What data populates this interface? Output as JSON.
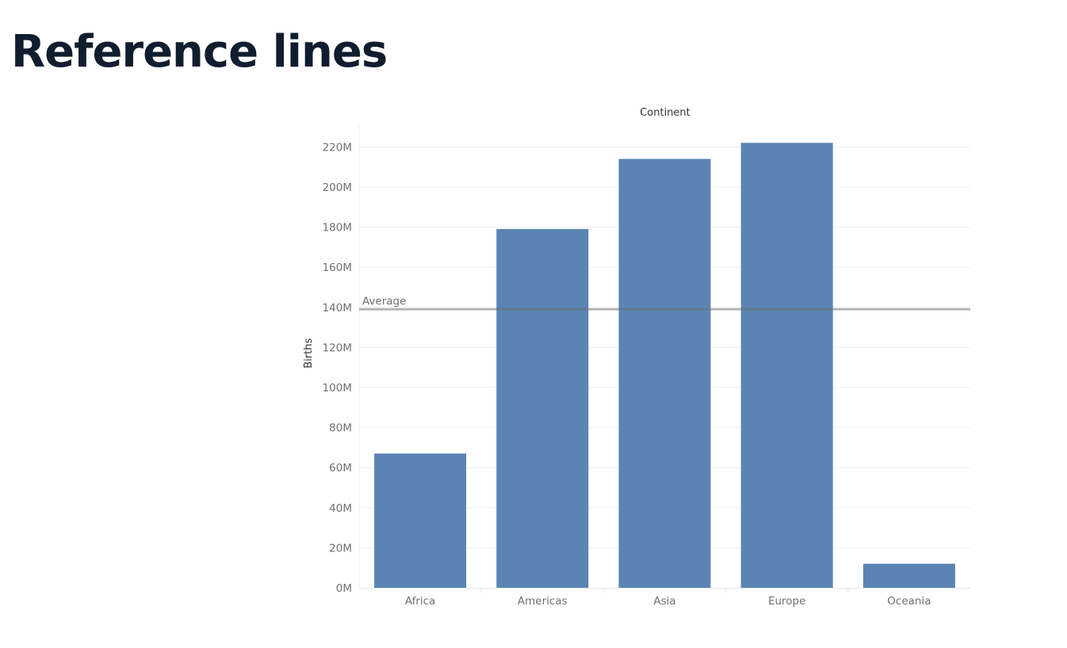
{
  "page": {
    "title": "Reference lines"
  },
  "chart_data": {
    "type": "bar",
    "title": "Continent",
    "xlabel": "",
    "ylabel": "Births",
    "categories": [
      "Africa",
      "Americas",
      "Asia",
      "Europe",
      "Oceania"
    ],
    "values": [
      67000000,
      179000000,
      214000000,
      222000000,
      12000000
    ],
    "ylim": [
      0,
      230000000
    ],
    "yticks": [
      0,
      20000000,
      40000000,
      60000000,
      80000000,
      100000000,
      120000000,
      140000000,
      160000000,
      180000000,
      200000000,
      220000000
    ],
    "ytick_labels": [
      "0M",
      "20M",
      "40M",
      "60M",
      "80M",
      "100M",
      "120M",
      "140M",
      "160M",
      "180M",
      "200M",
      "220M"
    ],
    "grid": true,
    "reference_line": {
      "label": "Average",
      "value": 139000000
    },
    "colors": {
      "bar": "#5b84b4",
      "reference_line": "#a9a9a9",
      "gridline": "#efefef"
    }
  }
}
